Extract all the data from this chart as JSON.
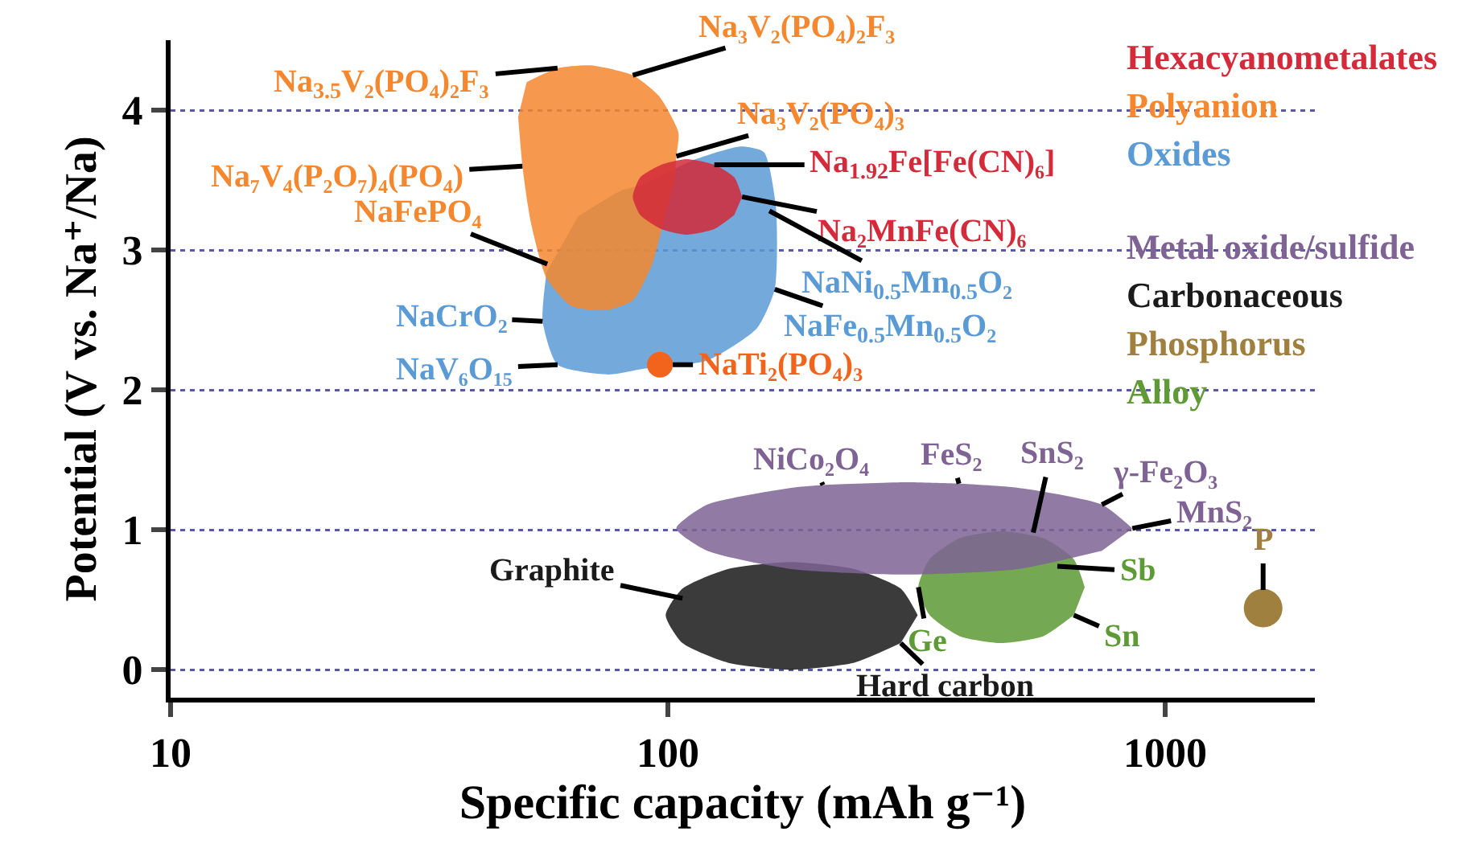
{
  "chart_data": {
    "type": "area",
    "xlabel": "Specific capacity (mAh g⁻¹)",
    "ylabel": "Potential (V vs. Na⁺/Na)",
    "log": "x",
    "xlim": [
      10,
      2000
    ],
    "xticks": [
      10,
      100,
      1000
    ],
    "ylim": [
      -0.2,
      4.5
    ],
    "yticks": [
      0,
      1,
      2,
      3,
      4
    ],
    "grid": "y",
    "legend": "top right",
    "series": [
      {
        "name": "Hexacyanometalates",
        "color": "#d42a3a",
        "x": [
          141,
          136,
          124,
          109,
          97,
          88,
          85,
          88,
          97,
          109,
          124,
          136
        ],
        "values": [
          3.38,
          3.52,
          3.61,
          3.65,
          3.61,
          3.52,
          3.38,
          3.25,
          3.15,
          3.11,
          3.15,
          3.25
        ]
      },
      {
        "name": "Polyanion",
        "color": "#f5872e",
        "x": [
          52,
          60,
          70,
          85,
          96,
          105,
          104,
          103,
          98,
          93,
          85,
          75,
          64,
          57,
          53,
          51,
          50
        ],
        "values": [
          4.2,
          4.3,
          4.32,
          4.25,
          4.1,
          3.84,
          3.67,
          3.5,
          3.2,
          2.9,
          2.64,
          2.57,
          2.6,
          2.8,
          3.2,
          3.6,
          3.95
        ]
      },
      {
        "name": "Oxides",
        "color": "#5b9bd5",
        "x": [
          66,
          80,
          89,
          112,
          140,
          156,
          165,
          164,
          151,
          120,
          89,
          76,
          60,
          56,
          57
        ],
        "values": [
          3.24,
          3.42,
          3.47,
          3.64,
          3.74,
          3.7,
          3.3,
          2.72,
          2.44,
          2.21,
          2.15,
          2.11,
          2.18,
          2.49,
          2.84
        ]
      },
      {
        "name": "Metal oxide/sulfide",
        "color": "#7e6394",
        "x": [
          859,
          746,
          507,
          385,
          299,
          205,
          177,
          120,
          104,
          120,
          177,
          299,
          507,
          746
        ],
        "values": [
          1.01,
          1.18,
          1.3,
          1.33,
          1.34,
          1.32,
          1.3,
          1.18,
          1.01,
          0.85,
          0.72,
          0.68,
          0.72,
          0.85
        ]
      },
      {
        "name": "Carbonaceous",
        "color": "#1a1a1a",
        "x": [
          318,
          294,
          237,
          177,
          132,
          107,
          99,
          107,
          132,
          177,
          237,
          294
        ],
        "values": [
          0.39,
          0.58,
          0.72,
          0.77,
          0.72,
          0.58,
          0.39,
          0.19,
          0.05,
          0.0,
          0.05,
          0.19
        ]
      },
      {
        "name": "Phosphorus",
        "color": "#a0803e",
        "type": "scatter",
        "marker": "circle",
        "x": [
          1574
        ],
        "values": [
          0.44
        ]
      },
      {
        "name": "Alloy",
        "color": "#5e9a35",
        "x": [
          689,
          655,
          569,
          469,
          386,
          336,
          319,
          336,
          386,
          469,
          569,
          655
        ],
        "values": [
          0.59,
          0.79,
          0.94,
          0.99,
          0.94,
          0.79,
          0.59,
          0.39,
          0.24,
          0.19,
          0.24,
          0.39
        ]
      },
      {
        "color": "#f2641c",
        "type": "scatter",
        "marker": "circle",
        "x": [
          96.4
        ],
        "values": [
          2.18
        ]
      }
    ],
    "annotations": [
      {
        "text": "Na$_{3.5}$V₂(PO₄)₂F₃",
        "x": 60,
        "y": 4.3
      },
      {
        "text": "Na₃V₂(PO₄)₂F₃",
        "x": 85,
        "y": 4.25
      },
      {
        "text": "Na₇V₄(P₂O₇)₄(PO₄)",
        "x": 51,
        "y": 3.6
      },
      {
        "text": "Na₃V₂(PO₄)₃",
        "x": 104,
        "y": 3.67
      },
      {
        "text": "Na$_{1.92}$Fe[Fe(CN)₆]",
        "x": 124,
        "y": 3.61
      },
      {
        "text": "Na₂MnFe(CN)₆",
        "x": 141,
        "y": 3.38
      },
      {
        "text": "NaNi$_{0.5}$Mn$_{0.5}$O₂",
        "x": 160,
        "y": 3.28
      },
      {
        "text": "NaFe$_{0.5}$Mn$_{0.5}$O₂",
        "x": 164,
        "y": 2.72
      },
      {
        "text": "NaFePO₄",
        "x": 57.2,
        "y": 2.9
      },
      {
        "text": "NaCrO₂",
        "x": 56,
        "y": 2.49
      },
      {
        "text": "NaV₆O₁₅",
        "x": 60,
        "y": 2.18
      },
      {
        "text": "NaTi₂(PO₄)₃",
        "x": 96.4,
        "y": 2.18
      },
      {
        "text": "NiCo₂O₄",
        "x": 205,
        "y": 1.32
      },
      {
        "text": "FeS₂",
        "x": 385,
        "y": 1.33
      },
      {
        "text": "SnS₂",
        "x": 543,
        "y": 0.98
      },
      {
        "text": "γ-Fe₂O₃",
        "x": 746,
        "y": 1.18
      },
      {
        "text": "MnS₂",
        "x": 859,
        "y": 1.01
      },
      {
        "text": "Graphite",
        "x": 107,
        "y": 0.51
      },
      {
        "text": "Hard carbon",
        "x": 294,
        "y": 0.19
      },
      {
        "text": "Ge",
        "x": 319,
        "y": 0.59
      },
      {
        "text": "Sb",
        "x": 607,
        "y": 0.74
      },
      {
        "text": "Sn",
        "x": 655,
        "y": 0.39
      },
      {
        "text": "P",
        "x": 1574,
        "y": 0.57
      }
    ]
  }
}
